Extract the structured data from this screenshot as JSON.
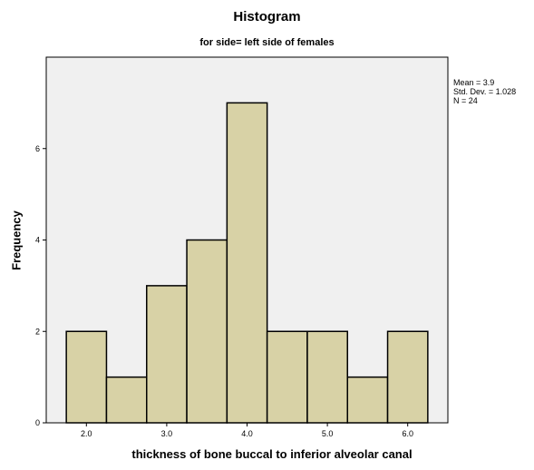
{
  "chart_data": {
    "type": "bar",
    "title": "Histogram",
    "subtitle": "for side= left side of females",
    "xlabel": "thickness of bone buccal to inferior alveolar canal",
    "ylabel": "Frequency",
    "bins": [
      {
        "start": 1.75,
        "end": 2.25,
        "count": 2
      },
      {
        "start": 2.25,
        "end": 2.75,
        "count": 1
      },
      {
        "start": 2.75,
        "end": 3.25,
        "count": 3
      },
      {
        "start": 3.25,
        "end": 3.75,
        "count": 4
      },
      {
        "start": 3.75,
        "end": 4.25,
        "count": 7
      },
      {
        "start": 4.25,
        "end": 4.75,
        "count": 2
      },
      {
        "start": 4.75,
        "end": 5.25,
        "count": 2
      },
      {
        "start": 5.25,
        "end": 5.75,
        "count": 1
      },
      {
        "start": 5.75,
        "end": 6.25,
        "count": 2
      }
    ],
    "xlim": [
      1.5,
      6.5
    ],
    "ylim": [
      0,
      8
    ],
    "xticks": [
      {
        "value": 2.0,
        "label": "2.0"
      },
      {
        "value": 3.0,
        "label": "3.0"
      },
      {
        "value": 4.0,
        "label": "4.0"
      },
      {
        "value": 5.0,
        "label": "5.0"
      },
      {
        "value": 6.0,
        "label": "6.0"
      }
    ],
    "yticks": [
      {
        "value": 0,
        "label": "0"
      },
      {
        "value": 2,
        "label": "2"
      },
      {
        "value": 4,
        "label": "4"
      },
      {
        "value": 6,
        "label": "6"
      }
    ],
    "stats": {
      "mean": "Mean = 3.9",
      "std": "Std. Dev. = 1.028",
      "n": "N = 24"
    },
    "grid": false,
    "colors": {
      "bar_fill": "#d8d2a6",
      "bar_stroke": "#000000",
      "plot_background": "#f0f0f0"
    }
  }
}
